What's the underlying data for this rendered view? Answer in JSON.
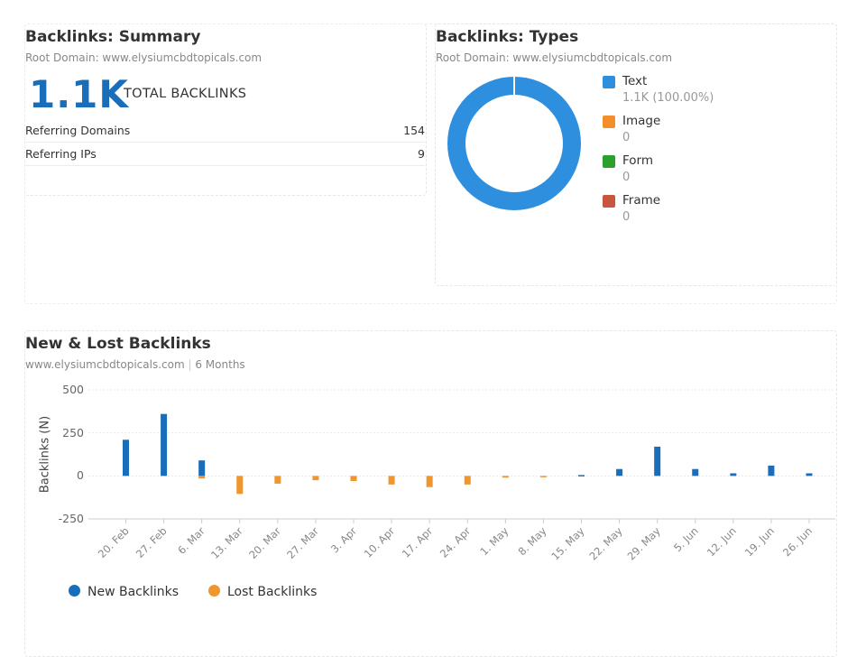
{
  "summary": {
    "title": "Backlinks: Summary",
    "root_domain": "Root Domain: www.elysiumcbdtopicals.com",
    "total_value": "1.1K",
    "total_label": "TOTAL BACKLINKS",
    "rows": [
      {
        "label": "Referring Domains",
        "value": "154"
      },
      {
        "label": "Referring IPs",
        "value": "9"
      }
    ]
  },
  "types": {
    "title": "Backlinks: Types",
    "root_domain": "Root Domain: www.elysiumcbdtopicals.com",
    "legend": [
      {
        "name": "Text",
        "value": "1.1K (100.00%)",
        "color": "#2f8fdf"
      },
      {
        "name": "Image",
        "value": "0",
        "color": "#f28e2b"
      },
      {
        "name": "Form",
        "value": "0",
        "color": "#2ca02c"
      },
      {
        "name": "Frame",
        "value": "0",
        "color": "#c8553d"
      }
    ]
  },
  "newlost": {
    "title": "New & Lost Backlinks",
    "subtitle": "www.elysiumcbdtopicals.com",
    "period": "6 Months"
  },
  "chart_data": [
    {
      "type": "pie",
      "categories": [
        "Text",
        "Image",
        "Form",
        "Frame"
      ],
      "values": [
        100,
        0,
        0,
        0
      ],
      "colors": [
        "#2f8fdf",
        "#f28e2b",
        "#2ca02c",
        "#c8553d"
      ],
      "donut": true,
      "legend": "right"
    },
    {
      "type": "bar",
      "ylabel": "Backlinks (N)",
      "xlabel": "",
      "ylim": [
        -250,
        500
      ],
      "yticks": [
        "500",
        "250",
        "0",
        "-250"
      ],
      "grid": true,
      "legend": "bottom-left",
      "categories": [
        "20. Feb",
        "27. Feb",
        "6. Mar",
        "13. Mar",
        "20. Mar",
        "27. Mar",
        "3. Apr",
        "10. Apr",
        "17. Apr",
        "24. Apr",
        "1. May",
        "8. May",
        "15. May",
        "22. May",
        "29. May",
        "5. Jun",
        "12. Jun",
        "19. Jun",
        "26. Jun"
      ],
      "series": [
        {
          "name": "New Backlinks",
          "color": "#1a6db8",
          "values": [
            210,
            360,
            90,
            0,
            0,
            0,
            0,
            0,
            0,
            0,
            0,
            0,
            5,
            40,
            170,
            40,
            15,
            60,
            15
          ]
        },
        {
          "name": "Lost Backlinks",
          "color": "#f0962e",
          "values": [
            0,
            0,
            -15,
            -105,
            -45,
            -25,
            -30,
            -50,
            -65,
            -50,
            -10,
            -8,
            0,
            0,
            0,
            0,
            0,
            0,
            0
          ]
        }
      ]
    }
  ]
}
